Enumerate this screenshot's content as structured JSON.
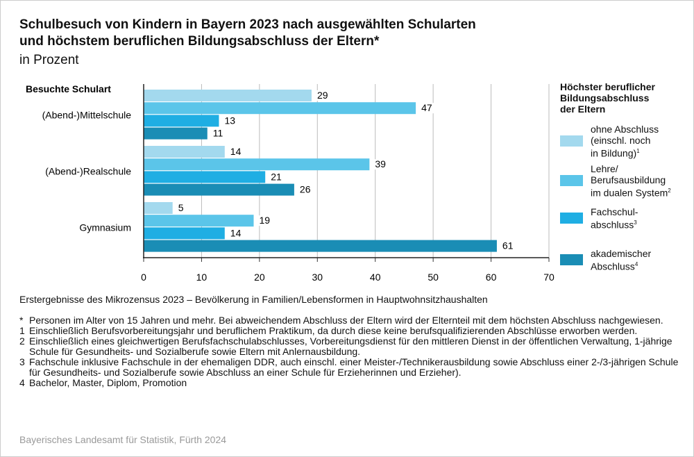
{
  "title_line1": "Schulbesuch von Kindern in Bayern 2023 nach ausgewählten Schularten",
  "title_line2": "und höchstem beruflichen Bildungsabschluss der Eltern*",
  "subtitle": "in Prozent",
  "chart_data": {
    "type": "bar",
    "orientation": "horizontal",
    "category_axis_title": "Besuchte Schulart",
    "categories": [
      "(Abend-)Mittelschule",
      "(Abend-)Realschule",
      "Gymnasium"
    ],
    "series": [
      {
        "name": "ohne Abschluss (einschl. noch in Bildung)",
        "footnote": "1",
        "color": "#a3d9ee",
        "values": [
          29,
          14,
          5
        ]
      },
      {
        "name": "Lehre/ Berufsausbildung im dualen System",
        "footnote": "2",
        "color": "#5bc5e9",
        "values": [
          47,
          39,
          19
        ]
      },
      {
        "name": "Fachschul- abschluss",
        "footnote": "3",
        "color": "#1faee3",
        "values": [
          13,
          21,
          14
        ]
      },
      {
        "name": "akademischer Abschluss",
        "footnote": "4",
        "color": "#1a8db5",
        "values": [
          11,
          26,
          61
        ]
      }
    ],
    "xlim": [
      0,
      70
    ],
    "xticks": [
      0,
      10,
      20,
      30,
      40,
      50,
      60,
      70
    ],
    "grid": true,
    "legend_title": "Höchster beruflicher Bildungsabschluss der Eltern",
    "legend_placement": "right"
  },
  "legend_lines": [
    [
      "ohne Abschluss",
      "(einschl. noch",
      "in Bildung)"
    ],
    [
      "Lehre/",
      "Berufsausbildung",
      "im dualen System"
    ],
    [
      "Fachschul-",
      "abschluss"
    ],
    [
      "akademischer",
      "Abschluss"
    ]
  ],
  "legend_title_lines": [
    "Höchster beruflicher",
    "Bildungsabschluss",
    "der Eltern"
  ],
  "source": "Erstergebnisse des Mikrozensus 2023 – Bevölkerung in Familien/Lebensformen in Hauptwohnsitzhaushalten",
  "notes": [
    {
      "key": "*",
      "text": "Personen im Alter von 15 Jahren und mehr. Bei abweichendem Abschluss der Eltern wird der Elternteil mit dem höchsten Abschluss nachgewiesen."
    },
    {
      "key": "1",
      "text": "Einschließlich Berufsvorbereitungsjahr und beruflichem Praktikum, da durch diese keine berufsqualifizierenden Abschlüsse erworben werden."
    },
    {
      "key": "2",
      "text": "Einschließlich eines gleichwertigen Berufsfachschulabschlusses, Vorbereitungsdienst für den mittleren Dienst in der öffentlichen Verwaltung, 1-jährige Schule für Gesundheits- und Sozialberufe sowie Eltern mit Anlernausbildung."
    },
    {
      "key": "3",
      "text": "Fachschule inklusive Fachschule in der ehemaligen DDR, auch einschl. einer Meister-/Technikerausbildung sowie Abschluss einer 2-/3-jährigen Schule für Gesundheits- und Sozialberufe sowie Abschluss an einer Schule für Erzieherinnen und Erzieher)."
    },
    {
      "key": "4",
      "text": "Bachelor, Master, Diplom, Promotion"
    }
  ],
  "credit": "Bayerisches Landesamt für Statistik, Fürth 2024"
}
